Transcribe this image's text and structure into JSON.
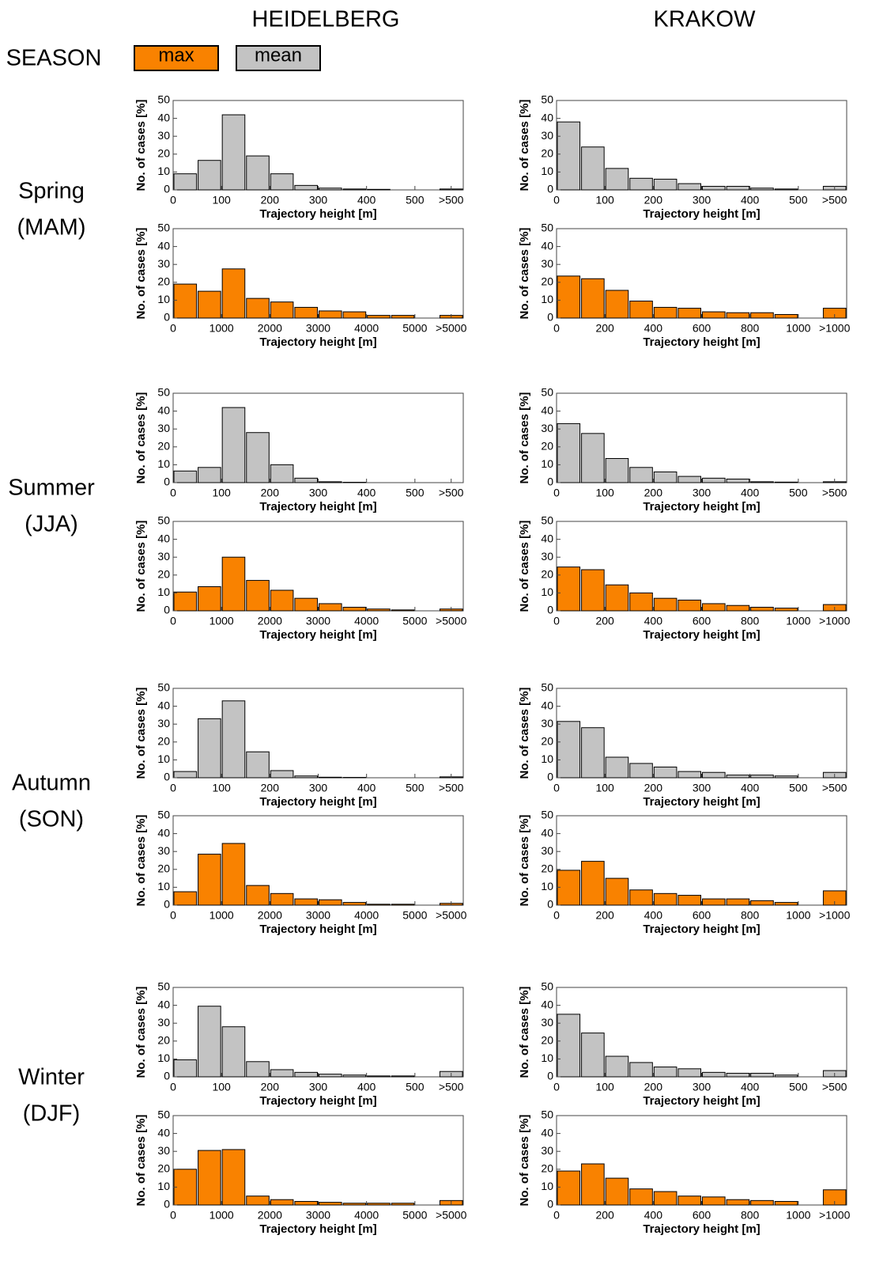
{
  "header": {
    "cities": [
      "HEIDELBERG",
      "KRAKOW"
    ],
    "season_label": "SEASON"
  },
  "legend": [
    {
      "label": "max",
      "color": "#f98200"
    },
    {
      "label": "mean",
      "color": "#c3c3c3"
    }
  ],
  "seasons": [
    {
      "name": "Spring",
      "code": "(MAM)"
    },
    {
      "name": "Summer",
      "code": "(JJA)"
    },
    {
      "name": "Autumn",
      "code": "(SON)"
    },
    {
      "name": "Winter",
      "code": "(DJF)"
    }
  ],
  "chart_data": [
    {
      "type": "histogram",
      "color": "#c3c3c3",
      "bins": [
        0,
        50,
        100,
        150,
        200,
        250,
        300,
        350,
        400,
        450,
        500,
        550,
        600
      ],
      "values": [
        9,
        16.5,
        42,
        19,
        9,
        2.5,
        1,
        0.5,
        0.3,
        0,
        0,
        0.5
      ],
      "xlim": [
        0,
        600
      ],
      "xticks": [
        0,
        100,
        200,
        300,
        400,
        500,
        {
          "value": 575,
          "label": ">500"
        }
      ],
      "ylim": [
        0,
        50
      ],
      "yticks": [
        0,
        10,
        20,
        30,
        40,
        50
      ],
      "xlabel": "Trajectory height [m]",
      "ylabel": "No. of cases [%]"
    },
    {
      "type": "histogram",
      "color": "#f98200",
      "bins": [
        0,
        500,
        1000,
        1500,
        2000,
        2500,
        3000,
        3500,
        4000,
        4500,
        5000,
        5500,
        6000
      ],
      "values": [
        19,
        15,
        27.5,
        11,
        9,
        6,
        4,
        3.5,
        1.5,
        1.5,
        0,
        1.5
      ],
      "xlim": [
        0,
        6000
      ],
      "xticks": [
        0,
        1000,
        2000,
        3000,
        4000,
        5000,
        {
          "value": 5750,
          "label": ">5000"
        }
      ],
      "ylim": [
        0,
        50
      ],
      "yticks": [
        0,
        10,
        20,
        30,
        40,
        50
      ],
      "xlabel": "Trajectory height [m]",
      "ylabel": "No. of cases [%]"
    },
    {
      "type": "histogram",
      "color": "#c3c3c3",
      "bins": [
        0,
        50,
        100,
        150,
        200,
        250,
        300,
        350,
        400,
        450,
        500,
        550,
        600
      ],
      "values": [
        38,
        24,
        12,
        6.5,
        6,
        3.5,
        2,
        2,
        1,
        0.5,
        0,
        2
      ],
      "xlim": [
        0,
        600
      ],
      "xticks": [
        0,
        100,
        200,
        300,
        400,
        500,
        {
          "value": 575,
          "label": ">500"
        }
      ],
      "ylim": [
        0,
        50
      ],
      "yticks": [
        0,
        10,
        20,
        30,
        40,
        50
      ],
      "xlabel": "Trajectory height [m]",
      "ylabel": "No. of cases [%]"
    },
    {
      "type": "histogram",
      "color": "#f98200",
      "bins": [
        0,
        100,
        200,
        300,
        400,
        500,
        600,
        700,
        800,
        900,
        1000,
        1100,
        1200
      ],
      "values": [
        23.5,
        22,
        15.5,
        9.5,
        6,
        5.5,
        3.5,
        3,
        3,
        2,
        0,
        5.5
      ],
      "xlim": [
        0,
        1200
      ],
      "xticks": [
        0,
        200,
        400,
        600,
        800,
        1000,
        {
          "value": 1150,
          "label": ">1000"
        }
      ],
      "ylim": [
        0,
        50
      ],
      "yticks": [
        0,
        10,
        20,
        30,
        40,
        50
      ],
      "xlabel": "Trajectory height [m]",
      "ylabel": "No. of cases [%]"
    },
    {
      "type": "histogram",
      "color": "#c3c3c3",
      "bins": [
        0,
        50,
        100,
        150,
        200,
        250,
        300,
        350,
        400,
        450,
        500,
        550,
        600
      ],
      "values": [
        6.5,
        8.5,
        42,
        28,
        10,
        2.5,
        0.5,
        0.2,
        0,
        0,
        0,
        0
      ],
      "xlim": [
        0,
        600
      ],
      "xticks": [
        0,
        100,
        200,
        300,
        400,
        500,
        {
          "value": 575,
          "label": ">500"
        }
      ],
      "ylim": [
        0,
        50
      ],
      "yticks": [
        0,
        10,
        20,
        30,
        40,
        50
      ],
      "xlabel": "Trajectory height [m]",
      "ylabel": "No. of cases [%]"
    },
    {
      "type": "histogram",
      "color": "#f98200",
      "bins": [
        0,
        500,
        1000,
        1500,
        2000,
        2500,
        3000,
        3500,
        4000,
        4500,
        5000,
        5500,
        6000
      ],
      "values": [
        10.5,
        13.5,
        30,
        17,
        11.5,
        7,
        4,
        2,
        1,
        0.5,
        0,
        1
      ],
      "xlim": [
        0,
        6000
      ],
      "xticks": [
        0,
        1000,
        2000,
        3000,
        4000,
        5000,
        {
          "value": 5750,
          "label": ">5000"
        }
      ],
      "ylim": [
        0,
        50
      ],
      "yticks": [
        0,
        10,
        20,
        30,
        40,
        50
      ],
      "xlabel": "Trajectory height [m]",
      "ylabel": "No. of cases [%]"
    },
    {
      "type": "histogram",
      "color": "#c3c3c3",
      "bins": [
        0,
        50,
        100,
        150,
        200,
        250,
        300,
        350,
        400,
        450,
        500,
        550,
        600
      ],
      "values": [
        33,
        27.5,
        13.5,
        8.5,
        6,
        3.5,
        2.5,
        2,
        0.5,
        0.3,
        0,
        0.5
      ],
      "xlim": [
        0,
        600
      ],
      "xticks": [
        0,
        100,
        200,
        300,
        400,
        500,
        {
          "value": 575,
          "label": ">500"
        }
      ],
      "ylim": [
        0,
        50
      ],
      "yticks": [
        0,
        10,
        20,
        30,
        40,
        50
      ],
      "xlabel": "Trajectory height [m]",
      "ylabel": "No. of cases [%]"
    },
    {
      "type": "histogram",
      "color": "#f98200",
      "bins": [
        0,
        100,
        200,
        300,
        400,
        500,
        600,
        700,
        800,
        900,
        1000,
        1100,
        1200
      ],
      "values": [
        24.5,
        23,
        14.5,
        10,
        7,
        6,
        4,
        3,
        2,
        1.5,
        0,
        3.5
      ],
      "xlim": [
        0,
        1200
      ],
      "xticks": [
        0,
        200,
        400,
        600,
        800,
        1000,
        {
          "value": 1150,
          "label": ">1000"
        }
      ],
      "ylim": [
        0,
        50
      ],
      "yticks": [
        0,
        10,
        20,
        30,
        40,
        50
      ],
      "xlabel": "Trajectory height [m]",
      "ylabel": "No. of cases [%]"
    },
    {
      "type": "histogram",
      "color": "#c3c3c3",
      "bins": [
        0,
        50,
        100,
        150,
        200,
        250,
        300,
        350,
        400,
        450,
        500,
        550,
        600
      ],
      "values": [
        3.5,
        33,
        43,
        14.5,
        4,
        1,
        0.3,
        0.2,
        0,
        0,
        0,
        0.5
      ],
      "xlim": [
        0,
        600
      ],
      "xticks": [
        0,
        100,
        200,
        300,
        400,
        500,
        {
          "value": 575,
          "label": ">500"
        }
      ],
      "ylim": [
        0,
        50
      ],
      "yticks": [
        0,
        10,
        20,
        30,
        40,
        50
      ],
      "xlabel": "Trajectory height [m]",
      "ylabel": "No. of cases [%]"
    },
    {
      "type": "histogram",
      "color": "#f98200",
      "bins": [
        0,
        500,
        1000,
        1500,
        2000,
        2500,
        3000,
        3500,
        4000,
        4500,
        5000,
        5500,
        6000
      ],
      "values": [
        7.5,
        28.5,
        34.5,
        11,
        6.5,
        3.5,
        3,
        1.5,
        0.5,
        0.5,
        0,
        1
      ],
      "xlim": [
        0,
        6000
      ],
      "xticks": [
        0,
        1000,
        2000,
        3000,
        4000,
        5000,
        {
          "value": 5750,
          "label": ">5000"
        }
      ],
      "ylim": [
        0,
        50
      ],
      "yticks": [
        0,
        10,
        20,
        30,
        40,
        50
      ],
      "xlabel": "Trajectory height [m]",
      "ylabel": "No. of cases [%]"
    },
    {
      "type": "histogram",
      "color": "#c3c3c3",
      "bins": [
        0,
        50,
        100,
        150,
        200,
        250,
        300,
        350,
        400,
        450,
        500,
        550,
        600
      ],
      "values": [
        31.5,
        28,
        11.5,
        8,
        6,
        3.5,
        3,
        1.5,
        1.5,
        1,
        0,
        3
      ],
      "xlim": [
        0,
        600
      ],
      "xticks": [
        0,
        100,
        200,
        300,
        400,
        500,
        {
          "value": 575,
          "label": ">500"
        }
      ],
      "ylim": [
        0,
        50
      ],
      "yticks": [
        0,
        10,
        20,
        30,
        40,
        50
      ],
      "xlabel": "Trajectory height [m]",
      "ylabel": "No. of cases [%]"
    },
    {
      "type": "histogram",
      "color": "#f98200",
      "bins": [
        0,
        100,
        200,
        300,
        400,
        500,
        600,
        700,
        800,
        900,
        1000,
        1100,
        1200
      ],
      "values": [
        19.5,
        24.5,
        15,
        8.5,
        6.5,
        5.5,
        3.5,
        3.5,
        2.5,
        1.5,
        0,
        8
      ],
      "xlim": [
        0,
        1200
      ],
      "xticks": [
        0,
        200,
        400,
        600,
        800,
        1000,
        {
          "value": 1150,
          "label": ">1000"
        }
      ],
      "ylim": [
        0,
        50
      ],
      "yticks": [
        0,
        10,
        20,
        30,
        40,
        50
      ],
      "xlabel": "Trajectory height [m]",
      "ylabel": "No. of cases [%]"
    },
    {
      "type": "histogram",
      "color": "#c3c3c3",
      "bins": [
        0,
        50,
        100,
        150,
        200,
        250,
        300,
        350,
        400,
        450,
        500,
        550,
        600
      ],
      "values": [
        9.5,
        39.5,
        28,
        8.5,
        4,
        2.5,
        1.5,
        1,
        0.5,
        0.5,
        0,
        3
      ],
      "xlim": [
        0,
        600
      ],
      "xticks": [
        0,
        100,
        200,
        300,
        400,
        500,
        {
          "value": 575,
          "label": ">500"
        }
      ],
      "ylim": [
        0,
        50
      ],
      "yticks": [
        0,
        10,
        20,
        30,
        40,
        50
      ],
      "xlabel": "Trajectory height [m]",
      "ylabel": "No. of cases [%]"
    },
    {
      "type": "histogram",
      "color": "#f98200",
      "bins": [
        0,
        500,
        1000,
        1500,
        2000,
        2500,
        3000,
        3500,
        4000,
        4500,
        5000,
        5500,
        6000
      ],
      "values": [
        20,
        30.5,
        31,
        5,
        3,
        2,
        1.5,
        1,
        1,
        1,
        0,
        2.5
      ],
      "xlim": [
        0,
        6000
      ],
      "xticks": [
        0,
        1000,
        2000,
        3000,
        4000,
        5000,
        {
          "value": 5750,
          "label": ">5000"
        }
      ],
      "ylim": [
        0,
        50
      ],
      "yticks": [
        0,
        10,
        20,
        30,
        40,
        50
      ],
      "xlabel": "Trajectory height [m]",
      "ylabel": "No. of cases [%]"
    },
    {
      "type": "histogram",
      "color": "#c3c3c3",
      "bins": [
        0,
        50,
        100,
        150,
        200,
        250,
        300,
        350,
        400,
        450,
        500,
        550,
        600
      ],
      "values": [
        35,
        24.5,
        11.5,
        8,
        5.5,
        4.5,
        2.5,
        2,
        2,
        1,
        0,
        3.5
      ],
      "xlim": [
        0,
        600
      ],
      "xticks": [
        0,
        100,
        200,
        300,
        400,
        500,
        {
          "value": 575,
          "label": ">500"
        }
      ],
      "ylim": [
        0,
        50
      ],
      "yticks": [
        0,
        10,
        20,
        30,
        40,
        50
      ],
      "xlabel": "Trajectory height [m]",
      "ylabel": "No. of cases [%]"
    },
    {
      "type": "histogram",
      "color": "#f98200",
      "bins": [
        0,
        100,
        200,
        300,
        400,
        500,
        600,
        700,
        800,
        900,
        1000,
        1100,
        1200
      ],
      "values": [
        19,
        23,
        15,
        9,
        7.5,
        5,
        4.5,
        3,
        2.5,
        2,
        0,
        8.5
      ],
      "xlim": [
        0,
        1200
      ],
      "xticks": [
        0,
        200,
        400,
        600,
        800,
        1000,
        {
          "value": 1150,
          "label": ">1000"
        }
      ],
      "ylim": [
        0,
        50
      ],
      "yticks": [
        0,
        10,
        20,
        30,
        40,
        50
      ],
      "xlabel": "Trajectory height [m]",
      "ylabel": "No. of cases [%]"
    }
  ]
}
